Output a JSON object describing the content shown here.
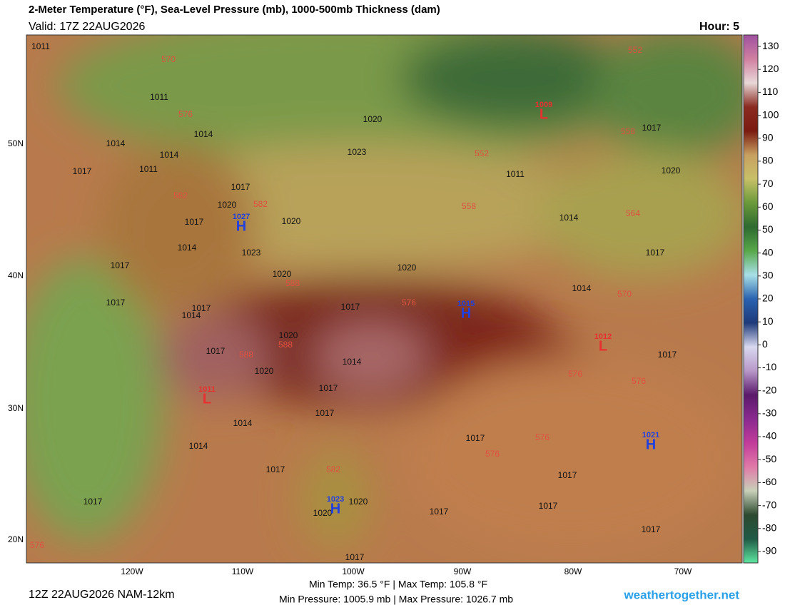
{
  "header": {
    "title": "2-Meter Temperature (°F), Sea-Level Pressure (mb), 1000-500mb Thickness (dam)",
    "valid": "Valid: 17Z 22AUG2026",
    "hour": "Hour: 5"
  },
  "map": {
    "lat_labels": [
      "50N",
      "40N",
      "30N",
      "20N"
    ],
    "lon_labels": [
      "120W",
      "110W",
      "100W",
      "90W",
      "80W",
      "70W"
    ],
    "pressure_centers": [
      {
        "letter": "H",
        "value": "1027"
      },
      {
        "letter": "H",
        "value": "1015"
      },
      {
        "letter": "H",
        "value": "1021"
      },
      {
        "letter": "H",
        "value": "1023"
      },
      {
        "letter": "L",
        "value": "1009"
      },
      {
        "letter": "L",
        "value": "1011"
      },
      {
        "letter": "L",
        "value": "1012"
      }
    ],
    "isobar_labels": [
      "1011",
      "1011",
      "1014",
      "1014",
      "1014",
      "1011",
      "1017",
      "1020",
      "1023",
      "1017",
      "1020",
      "1017",
      "1020",
      "1014",
      "1023",
      "1017",
      "1020",
      "1020",
      "1017",
      "1014",
      "1017",
      "1017",
      "1014",
      "1020",
      "1017",
      "1014",
      "1020",
      "1017",
      "1017",
      "1017",
      "1014",
      "1014",
      "1017",
      "1017",
      "1017",
      "1020",
      "1020",
      "1017",
      "1017",
      "1017",
      "1017",
      "1017",
      "1011",
      "1014",
      "1017",
      "1020",
      "1017"
    ],
    "thickness_labels": [
      "570",
      "576",
      "582",
      "582",
      "588",
      "588",
      "588",
      "582",
      "576",
      "570",
      "576",
      "576",
      "576",
      "564",
      "558",
      "558",
      "552",
      "552",
      "576",
      "576"
    ]
  },
  "colorbar": {
    "lim": [
      -95,
      135
    ],
    "ticks": [
      130,
      120,
      110,
      100,
      90,
      80,
      70,
      60,
      50,
      40,
      30,
      20,
      10,
      0,
      -10,
      -20,
      -30,
      -40,
      -50,
      -60,
      -70,
      -80,
      -90
    ],
    "colors": [
      "#5ee6a0",
      "#1f5a46",
      "#2c4a30",
      "#c8d0b8",
      "#e07aa8",
      "#c23c9a",
      "#8a2a90",
      "#5a1a6a",
      "#b898c8",
      "#d8d8f0",
      "#1e3a7a",
      "#2a62b0",
      "#a8e0e8",
      "#58a84a",
      "#2e6a30",
      "#6a9a3a",
      "#c8c068",
      "#c8a060",
      "#7a1a10",
      "#8a2a20",
      "#e8d8d8",
      "#d080a0",
      "#a050a0"
    ]
  },
  "footer": {
    "run": "12Z 22AUG2026 NAM-12km",
    "temps": "Min Temp:  36.5 °F | Max Temp: 105.8 °F",
    "pressures": "Min Pressure: 1005.9 mb | Max Pressure: 1026.7 mb",
    "site": "weathertogether.net"
  }
}
